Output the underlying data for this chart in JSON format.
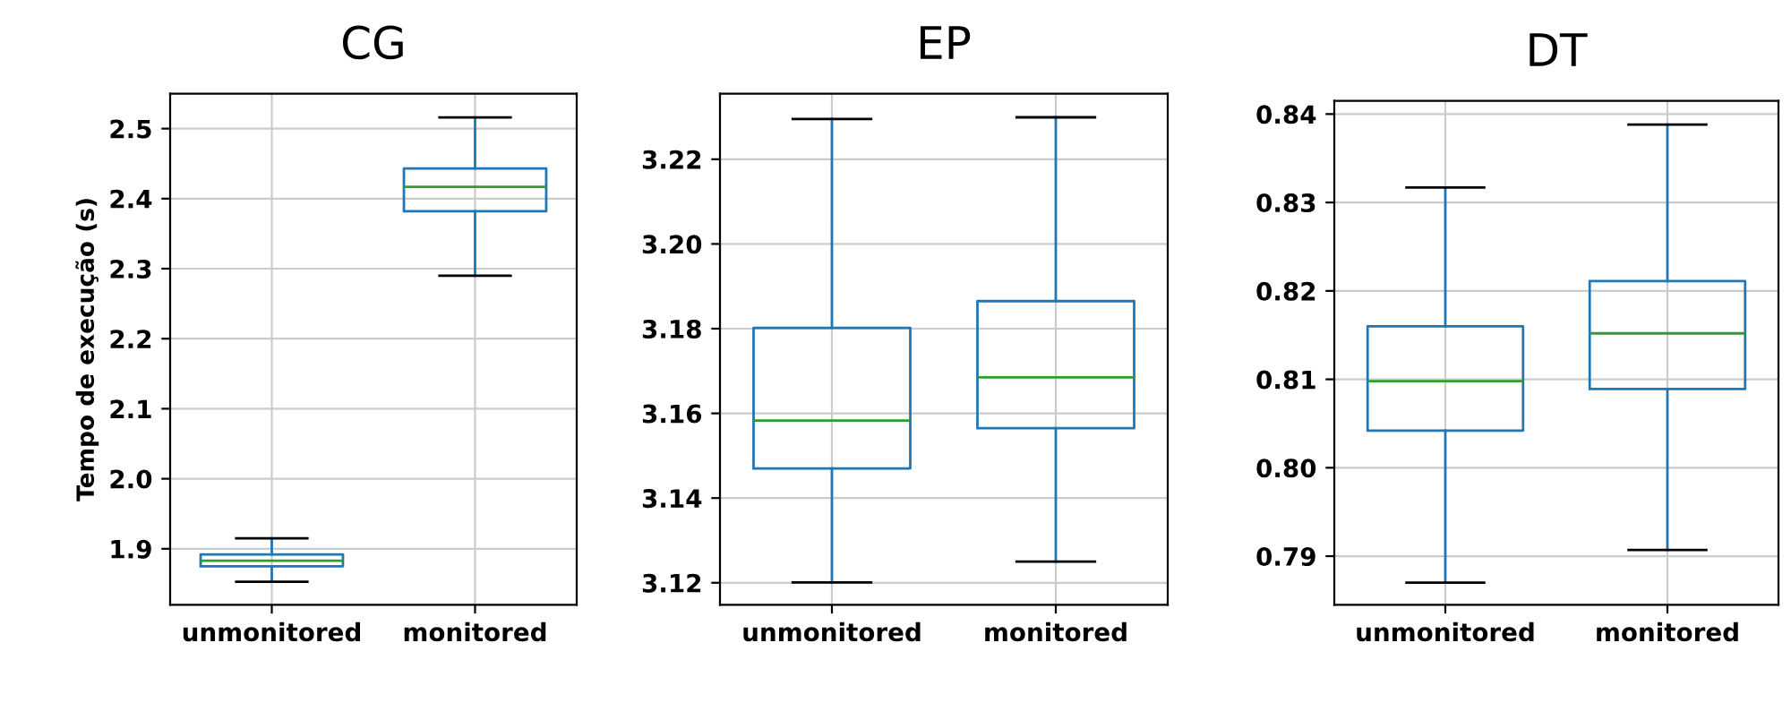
{
  "chart_data": [
    {
      "type": "box",
      "title": "CG",
      "ylabel": "Tempo de execução (s)",
      "categories": [
        "unmonitored",
        "monitored"
      ],
      "color": "#1f77b4",
      "grid": true,
      "boxes": [
        {
          "low": 1.853,
          "q1": 1.875,
          "median": 1.883,
          "q3": 1.892,
          "high": 1.915
        },
        {
          "low": 2.29,
          "q1": 2.382,
          "median": 2.417,
          "q3": 2.443,
          "high": 2.516
        }
      ],
      "ylim": [
        1.82,
        2.55
      ],
      "yticks": [
        {
          "value": 1.9,
          "label": "1.9"
        },
        {
          "value": 2.0,
          "label": "2.0"
        },
        {
          "value": 2.1,
          "label": "2.1"
        },
        {
          "value": 2.2,
          "label": "2.2"
        },
        {
          "value": 2.3,
          "label": "2.3"
        },
        {
          "value": 2.4,
          "label": "2.4"
        },
        {
          "value": 2.5,
          "label": "2.5"
        }
      ]
    },
    {
      "type": "box",
      "title": "EP",
      "categories": [
        "unmonitored",
        "monitored"
      ],
      "color": "#1f77b4",
      "grid": true,
      "boxes": [
        {
          "low": 3.1201,
          "q1": 3.147,
          "median": 3.1583,
          "q3": 3.1802,
          "high": 3.2295
        },
        {
          "low": 3.125,
          "q1": 3.1565,
          "median": 3.1685,
          "q3": 3.1865,
          "high": 3.2299
        }
      ],
      "ylim": [
        3.1148,
        3.2355
      ],
      "yticks": [
        {
          "value": 3.12,
          "label": "3.12"
        },
        {
          "value": 3.14,
          "label": "3.14"
        },
        {
          "value": 3.16,
          "label": "3.16"
        },
        {
          "value": 3.18,
          "label": "3.18"
        },
        {
          "value": 3.2,
          "label": "3.20"
        },
        {
          "value": 3.22,
          "label": "3.22"
        }
      ]
    },
    {
      "type": "box",
      "title": "DT",
      "categories": [
        "unmonitored",
        "monitored"
      ],
      "color": "#1f77b4",
      "grid": true,
      "boxes": [
        {
          "low": 0.787,
          "q1": 0.8042,
          "median": 0.8098,
          "q3": 0.816,
          "high": 0.8317
        },
        {
          "low": 0.7907,
          "q1": 0.8089,
          "median": 0.8152,
          "q3": 0.8211,
          "high": 0.8388
        }
      ],
      "ylim": [
        0.7845,
        0.8415
      ],
      "yticks": [
        {
          "value": 0.79,
          "label": "0.79"
        },
        {
          "value": 0.8,
          "label": "0.80"
        },
        {
          "value": 0.81,
          "label": "0.81"
        },
        {
          "value": 0.82,
          "label": "0.82"
        },
        {
          "value": 0.83,
          "label": "0.83"
        },
        {
          "value": 0.84,
          "label": "0.84"
        }
      ]
    }
  ]
}
